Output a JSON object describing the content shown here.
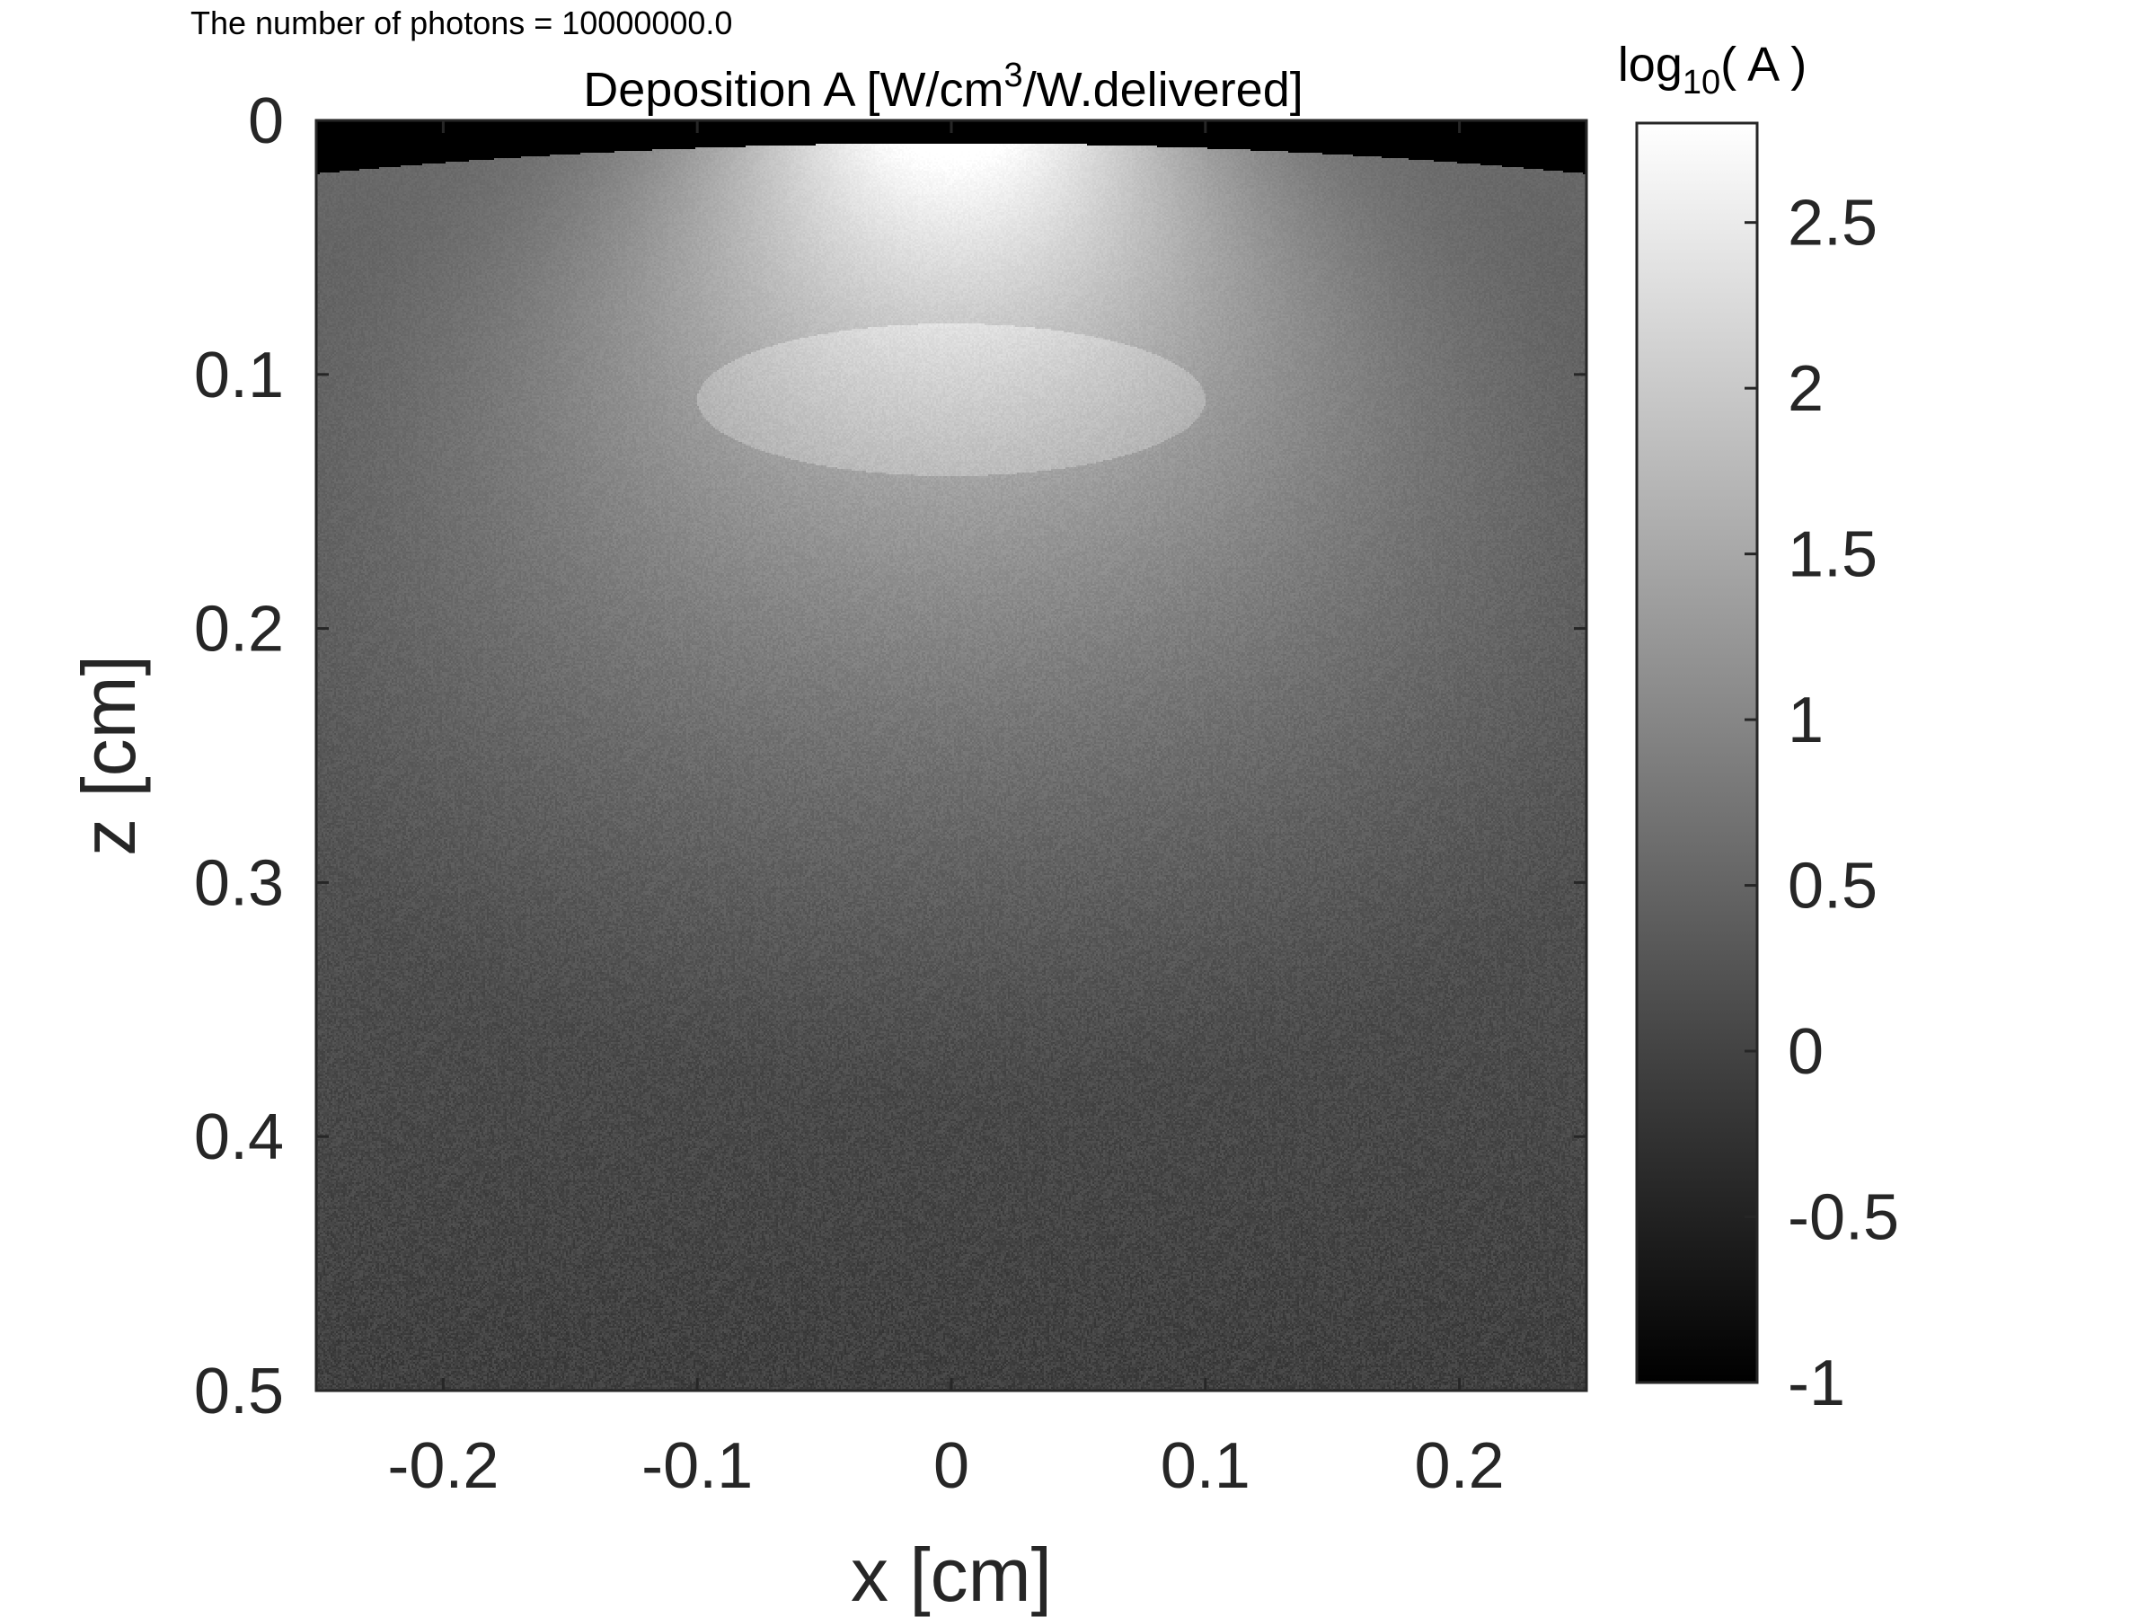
{
  "chart_data": {
    "type": "heatmap",
    "header_note": "The number of photons = 10000000.0",
    "title": {
      "prefix": "Deposition A [W/cm",
      "superscript": "3",
      "suffix": "/W.delivered]"
    },
    "xlabel": "x [cm]",
    "ylabel": "z [cm]",
    "xlim": [
      -0.25,
      0.25
    ],
    "ylim": [
      0,
      0.5
    ],
    "x_ticks": [
      -0.2,
      -0.1,
      0,
      0.1,
      0.2
    ],
    "x_tick_labels": [
      "-0.2",
      "-0.1",
      "0",
      "0.1",
      "0.2"
    ],
    "y_ticks": [
      0,
      0.1,
      0.2,
      0.3,
      0.4,
      0.5
    ],
    "y_tick_labels": [
      "0",
      "0.1",
      "0.2",
      "0.3",
      "0.4",
      "0.5"
    ],
    "colormap": "gray",
    "colorbar": {
      "label_prefix": "log",
      "label_subscript": "10",
      "label_suffix": "( A )",
      "clim": [
        -1,
        2.8
      ],
      "ticks": [
        -1,
        -0.5,
        0,
        0.5,
        1,
        1.5,
        2,
        2.5
      ],
      "tick_labels": [
        "-1",
        "-0.5",
        "0",
        "0.5",
        "1",
        "1.5",
        "2",
        "2.5"
      ]
    },
    "field_model": {
      "surface_z": 0.013,
      "peak_log10": 2.3,
      "lateral_scale": 0.07,
      "depth_scale": 0.2,
      "background_top_log10": 0.0,
      "background_bottom_log10": -0.6,
      "noise_amplitude": 0.12
    },
    "inclusion": {
      "shape": "ellipse",
      "center_x": 0.0,
      "center_z": 0.11,
      "half_width_x": 0.1,
      "half_height_z": 0.03,
      "boost_log10": 0.35
    }
  }
}
